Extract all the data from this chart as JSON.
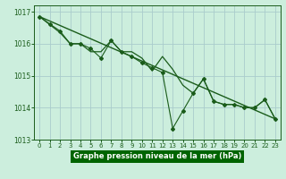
{
  "title": "Graphe pression niveau de la mer (hPa)",
  "background_color": "#006400",
  "plot_background_color": "#cceedd",
  "grid_color": "#aacccc",
  "line_color": "#1a5c1a",
  "tick_label_color": "#1a5c1a",
  "xlabel_color": "#ffffff",
  "xlabel_bg": "#006400",
  "xlim": [
    -0.5,
    23.5
  ],
  "ylim": [
    1013.0,
    1017.2
  ],
  "yticks": [
    1013,
    1014,
    1015,
    1016,
    1017
  ],
  "xticks": [
    0,
    1,
    2,
    3,
    4,
    5,
    6,
    7,
    8,
    9,
    10,
    11,
    12,
    13,
    14,
    15,
    16,
    17,
    18,
    19,
    20,
    21,
    22,
    23
  ],
  "series1_x": [
    0,
    1,
    2,
    3,
    4,
    5,
    6,
    7,
    8,
    9,
    10,
    11,
    12,
    13,
    14,
    15,
    16,
    17,
    18,
    19,
    20,
    21,
    22,
    23
  ],
  "series1_y": [
    1016.85,
    1016.6,
    1016.35,
    1016.0,
    1016.0,
    1015.75,
    1015.75,
    1016.1,
    1015.75,
    1015.75,
    1015.55,
    1015.15,
    1015.6,
    1015.2,
    1014.7,
    1014.45,
    1014.9,
    1014.2,
    1014.1,
    1014.1,
    1014.0,
    1014.0,
    1014.25,
    1013.65
  ],
  "series2_x": [
    0,
    1,
    2,
    3,
    4,
    5,
    6,
    7,
    8,
    9,
    10,
    11,
    12,
    13,
    14,
    15,
    16,
    17,
    18,
    19,
    20,
    21,
    22,
    23
  ],
  "series2_y": [
    1016.85,
    1016.62,
    1016.4,
    1016.0,
    1016.0,
    1015.85,
    1015.55,
    1016.1,
    1015.75,
    1015.6,
    1015.4,
    1015.25,
    1015.1,
    1013.35,
    1013.9,
    1014.45,
    1014.9,
    1014.2,
    1014.1,
    1014.1,
    1014.0,
    1014.0,
    1014.25,
    1013.65
  ],
  "trend_x": [
    0,
    23
  ],
  "trend_y": [
    1016.85,
    1013.65
  ]
}
